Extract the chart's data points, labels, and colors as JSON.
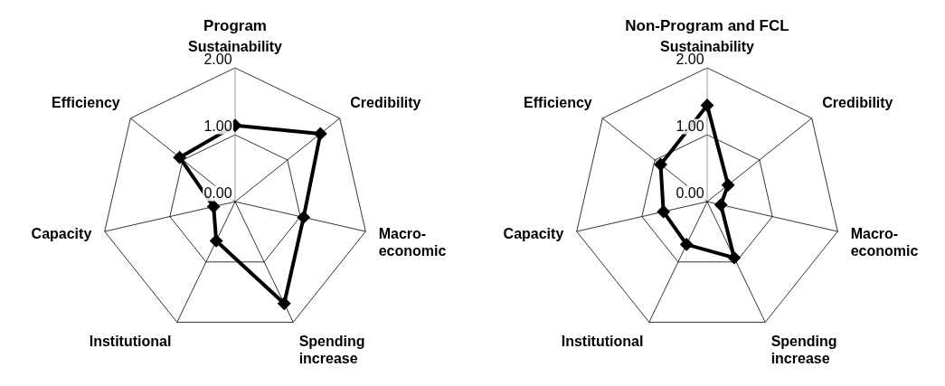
{
  "chart_data": [
    {
      "type": "radar",
      "title": "Program",
      "categories": [
        "Sustainability",
        "Credibility",
        "Macro-economic",
        "Spending increase",
        "Institutional",
        "Capacity",
        "Efficiency"
      ],
      "series": [
        {
          "color": "#000000",
          "values": [
            1.14,
            1.63,
            1.05,
            1.69,
            0.65,
            0.33,
            1.06
          ]
        }
      ],
      "ylim": [
        0,
        2
      ],
      "yticks": [
        {
          "value": 0,
          "label": "0.00"
        },
        {
          "value": 1,
          "label": "1.00"
        },
        {
          "value": 2,
          "label": "2.00"
        }
      ],
      "grid": true,
      "marker": "diamond",
      "line_style": "solid"
    },
    {
      "type": "radar",
      "title": "Non-Program and FCL",
      "categories": [
        "Sustainability",
        "Credibility",
        "Macro-economic",
        "Spending increase",
        "Institutional",
        "Capacity",
        "Efficiency"
      ],
      "series": [
        {
          "color": "#000000",
          "values": [
            1.44,
            0.4,
            0.21,
            0.93,
            0.71,
            0.67,
            0.89
          ]
        }
      ],
      "ylim": [
        0,
        2
      ],
      "yticks": [
        {
          "value": 0,
          "label": "0.00"
        },
        {
          "value": 1,
          "label": "1.00"
        },
        {
          "value": 2,
          "label": "2.00"
        }
      ],
      "grid": true,
      "marker": "diamond",
      "line_style": "solid"
    }
  ]
}
